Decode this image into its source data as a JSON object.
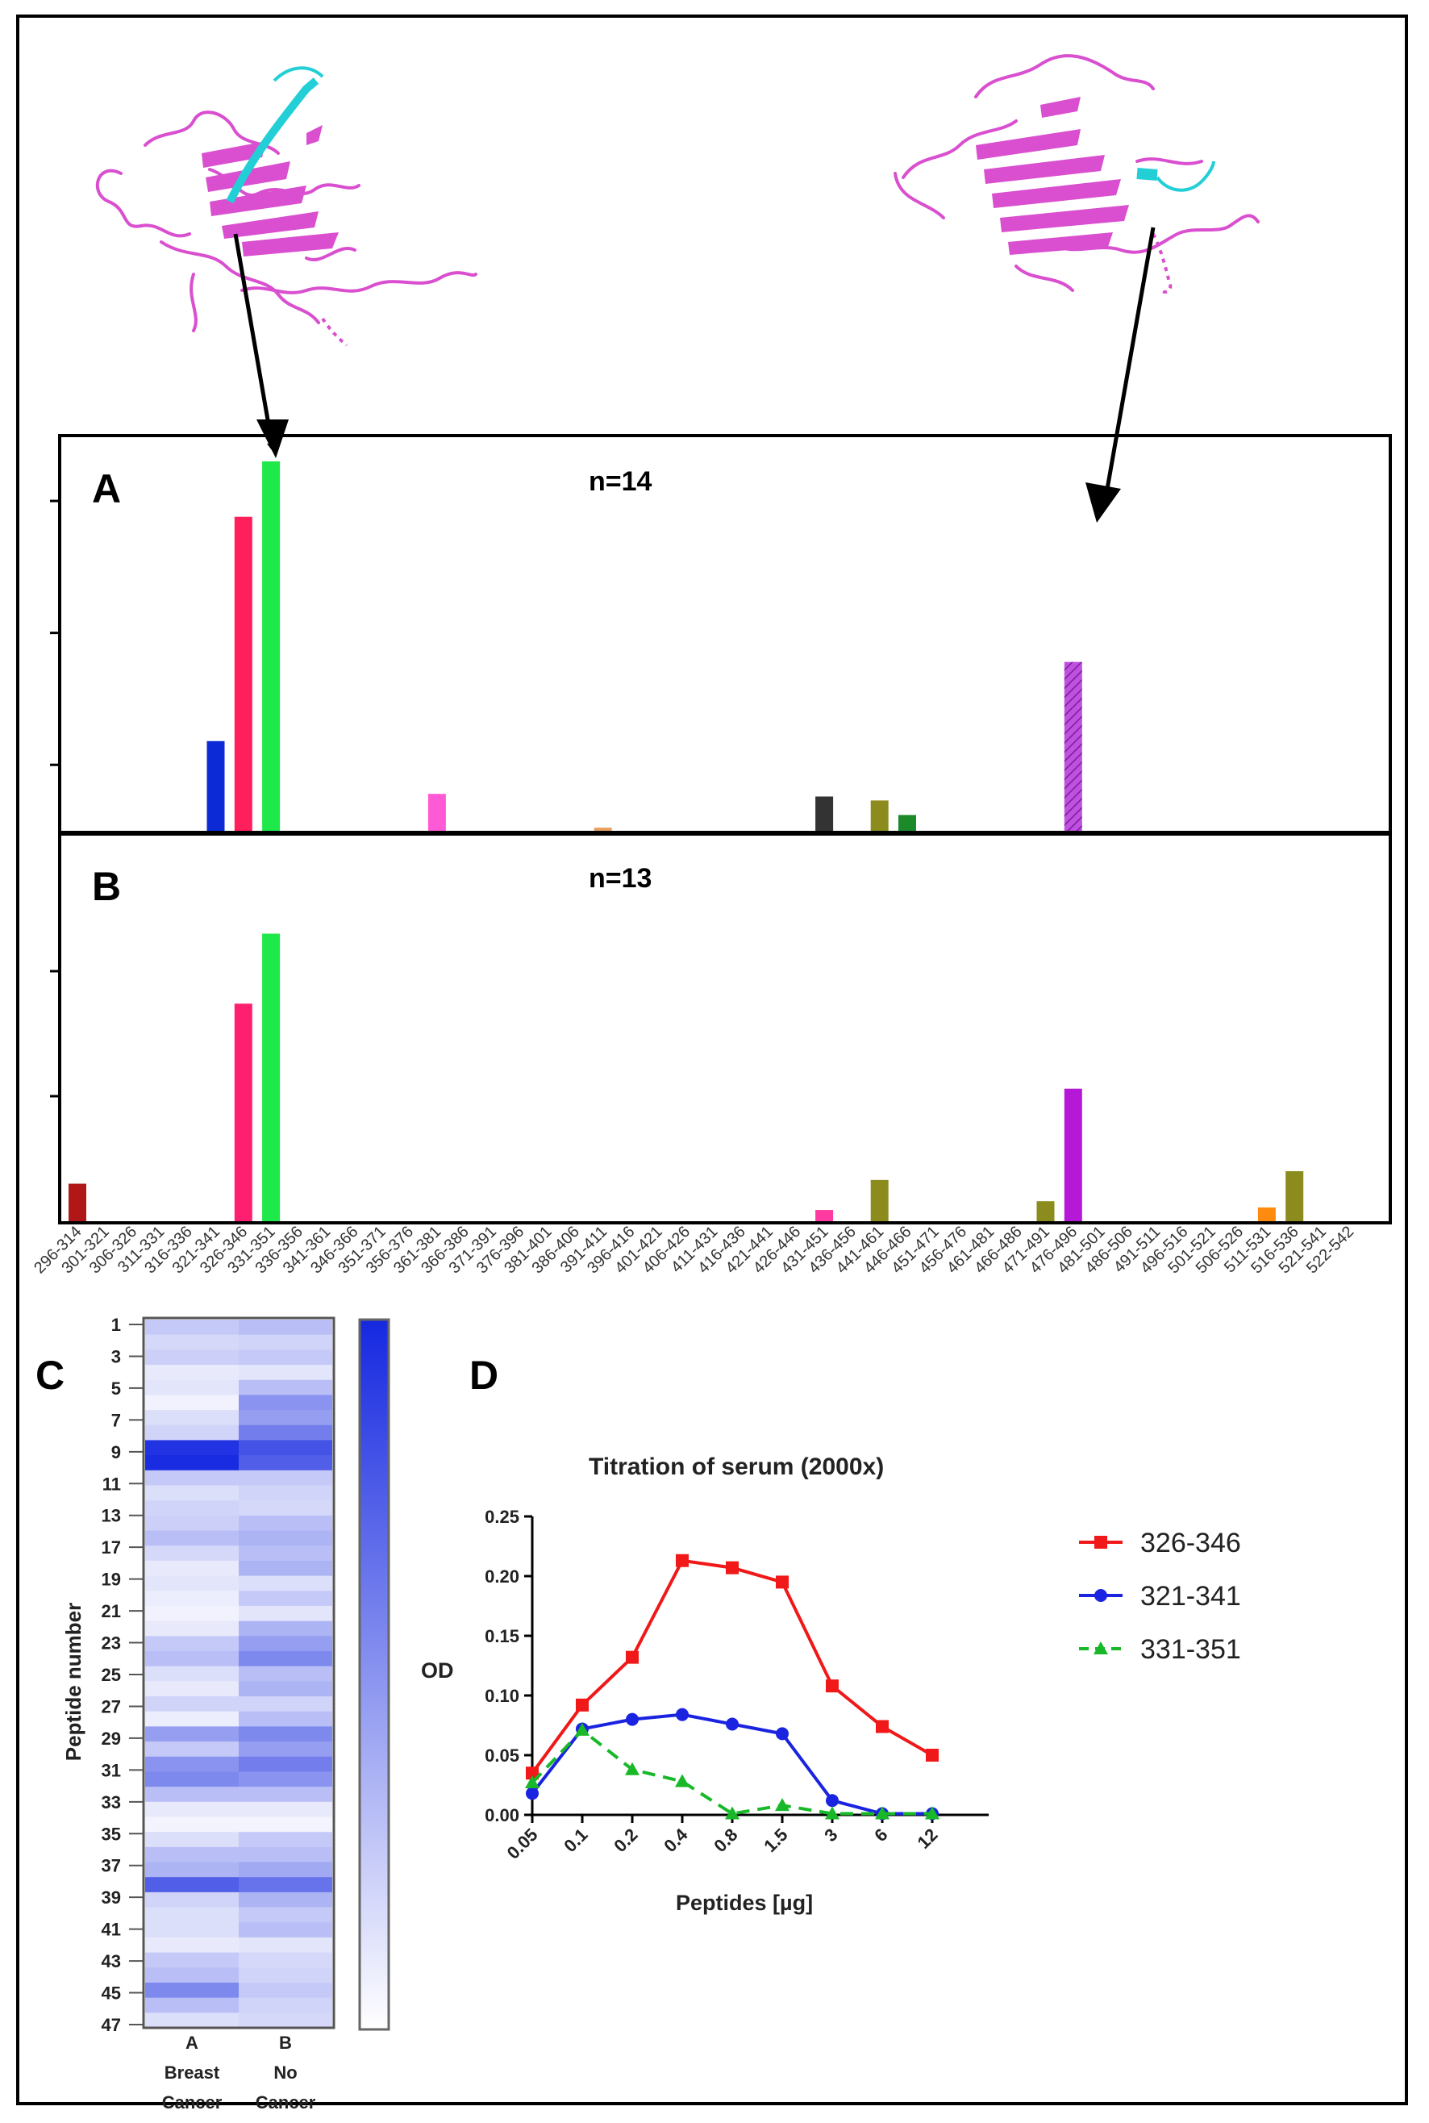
{
  "colors": {
    "protein": "#d94fcf",
    "epitope": "#22cfd6",
    "heat_max": "#1528e0",
    "heat_min": "#ffffff"
  },
  "structures": [
    {
      "name": "structure-left",
      "description_icon": "protein-ribbon-icon"
    },
    {
      "name": "structure-right",
      "description_icon": "protein-ribbon-icon"
    }
  ],
  "peptide_labels": [
    "296-314",
    "301-321",
    "306-326",
    "311-331",
    "316-336",
    "321-341",
    "326-346",
    "331-351",
    "336-356",
    "341-361",
    "346-366",
    "351-371",
    "356-376",
    "361-381",
    "366-386",
    "371-391",
    "376-396",
    "381-401",
    "386-406",
    "391-411",
    "396-416",
    "401-421",
    "406-426",
    "411-431",
    "416-436",
    "421-441",
    "426-446",
    "431-451",
    "436-456",
    "441-461",
    "446-466",
    "451-471",
    "456-476",
    "461-481",
    "466-486",
    "471-491",
    "476-496",
    "481-501",
    "486-506",
    "491-511",
    "496-516",
    "501-521",
    "506-526",
    "511-531",
    "516-536",
    "521-541",
    "522-542"
  ],
  "chart_data": [
    {
      "type": "bar",
      "panel": "A",
      "title": "n=14",
      "label": "A",
      "ylim": [
        0,
        14
      ],
      "yticks": [
        2.5,
        7.5,
        12.5
      ],
      "bars": [
        {
          "category": "321-341",
          "value": 3.4,
          "color": "#0c2bd6"
        },
        {
          "category": "326-346",
          "value": 11.9,
          "color": "#ff1f5a"
        },
        {
          "category": "331-351",
          "value": 14.0,
          "color": "#1ee84a"
        },
        {
          "category": "361-381",
          "value": 1.4,
          "color": "#ff5ad6"
        },
        {
          "category": "391-411",
          "value": 0.12,
          "color": "#e8a060"
        },
        {
          "category": "431-451",
          "value": 1.3,
          "color": "#333333"
        },
        {
          "category": "441-461",
          "value": 1.15,
          "color": "#8c8c1e"
        },
        {
          "category": "446-466",
          "value": 0.6,
          "color": "#1d8a2a"
        },
        {
          "category": "476-496",
          "value": 6.4,
          "color": "#c050e0",
          "hatched": true
        }
      ]
    },
    {
      "type": "bar",
      "panel": "B",
      "title": "n=13",
      "label": "B",
      "ylim": [
        0,
        14
      ],
      "yticks": [
        5,
        10
      ],
      "bars": [
        {
          "category": "296-314",
          "value": 1.5,
          "color": "#b01818"
        },
        {
          "category": "326-346",
          "value": 8.7,
          "color": "#ff1f70"
        },
        {
          "category": "331-351",
          "value": 11.5,
          "color": "#1ee84a"
        },
        {
          "category": "431-451",
          "value": 0.45,
          "color": "#ff3aa0"
        },
        {
          "category": "441-461",
          "value": 1.65,
          "color": "#8c8c1e"
        },
        {
          "category": "471-491",
          "value": 0.8,
          "color": "#8c8c1e"
        },
        {
          "category": "476-496",
          "value": 5.3,
          "color": "#b618d8"
        },
        {
          "category": "511-531",
          "value": 0.55,
          "color": "#ff8a10"
        },
        {
          "category": "516-536",
          "value": 2.0,
          "color": "#8c8c1e"
        }
      ]
    },
    {
      "type": "heatmap",
      "panel": "C",
      "label": "C",
      "ylabel": "Peptide number",
      "row_tick_labels": [
        "1",
        "3",
        "5",
        "7",
        "9",
        "11",
        "13",
        "17",
        "19",
        "21",
        "23",
        "25",
        "27",
        "29",
        "31",
        "33",
        "35",
        "37",
        "39",
        "41",
        "43",
        "45",
        "47"
      ],
      "columns": [
        {
          "letter": "A",
          "line1": "Breast",
          "line2": "Cancer"
        },
        {
          "letter": "B",
          "line1": "No",
          "line2": "Cancer"
        }
      ],
      "intensity_A": [
        0.25,
        0.18,
        0.22,
        0.1,
        0.12,
        0.06,
        0.15,
        0.2,
        0.95,
        0.98,
        0.25,
        0.15,
        0.2,
        0.22,
        0.3,
        0.18,
        0.1,
        0.12,
        0.08,
        0.06,
        0.1,
        0.25,
        0.3,
        0.15,
        0.1,
        0.2,
        0.08,
        0.45,
        0.25,
        0.5,
        0.55,
        0.3,
        0.1,
        0.05,
        0.15,
        0.3,
        0.35,
        0.75,
        0.2,
        0.15,
        0.15,
        0.1,
        0.25,
        0.3,
        0.55,
        0.3,
        0.15
      ],
      "intensity_B": [
        0.3,
        0.2,
        0.25,
        0.12,
        0.3,
        0.5,
        0.45,
        0.6,
        0.8,
        0.75,
        0.25,
        0.2,
        0.18,
        0.3,
        0.35,
        0.3,
        0.35,
        0.15,
        0.25,
        0.12,
        0.35,
        0.45,
        0.55,
        0.3,
        0.35,
        0.2,
        0.3,
        0.55,
        0.45,
        0.6,
        0.5,
        0.3,
        0.1,
        0.05,
        0.25,
        0.3,
        0.4,
        0.65,
        0.35,
        0.25,
        0.3,
        0.12,
        0.18,
        0.2,
        0.25,
        0.2,
        0.18
      ]
    },
    {
      "type": "line",
      "panel": "D",
      "label": "D",
      "title": "Titration of serum (2000x)",
      "xlabel": "Peptides  [µg]",
      "ylabel": "OD",
      "x": [
        "0.05",
        "0.1",
        "0.2",
        "0.4",
        "0.8",
        "1.5",
        "3",
        "6",
        "12"
      ],
      "ylim": [
        0,
        0.25
      ],
      "yticks": [
        "0.00",
        "0.05",
        "0.10",
        "0.15",
        "0.20",
        "0.25"
      ],
      "series": [
        {
          "name": "326-346",
          "color": "#f01818",
          "marker": "square",
          "dashed": false,
          "values": [
            0.035,
            0.092,
            0.132,
            0.213,
            0.207,
            0.195,
            0.108,
            0.074,
            0.05
          ]
        },
        {
          "name": "321-341",
          "color": "#1a24e0",
          "marker": "circle",
          "dashed": false,
          "values": [
            0.018,
            0.072,
            0.08,
            0.084,
            0.076,
            0.068,
            0.012,
            0.001,
            0.001
          ]
        },
        {
          "name": "331-351",
          "color": "#18b828",
          "marker": "triangle",
          "dashed": true,
          "values": [
            0.027,
            0.071,
            0.038,
            0.028,
            0.001,
            0.008,
            0.001,
            0.001,
            0.001
          ]
        }
      ]
    }
  ]
}
